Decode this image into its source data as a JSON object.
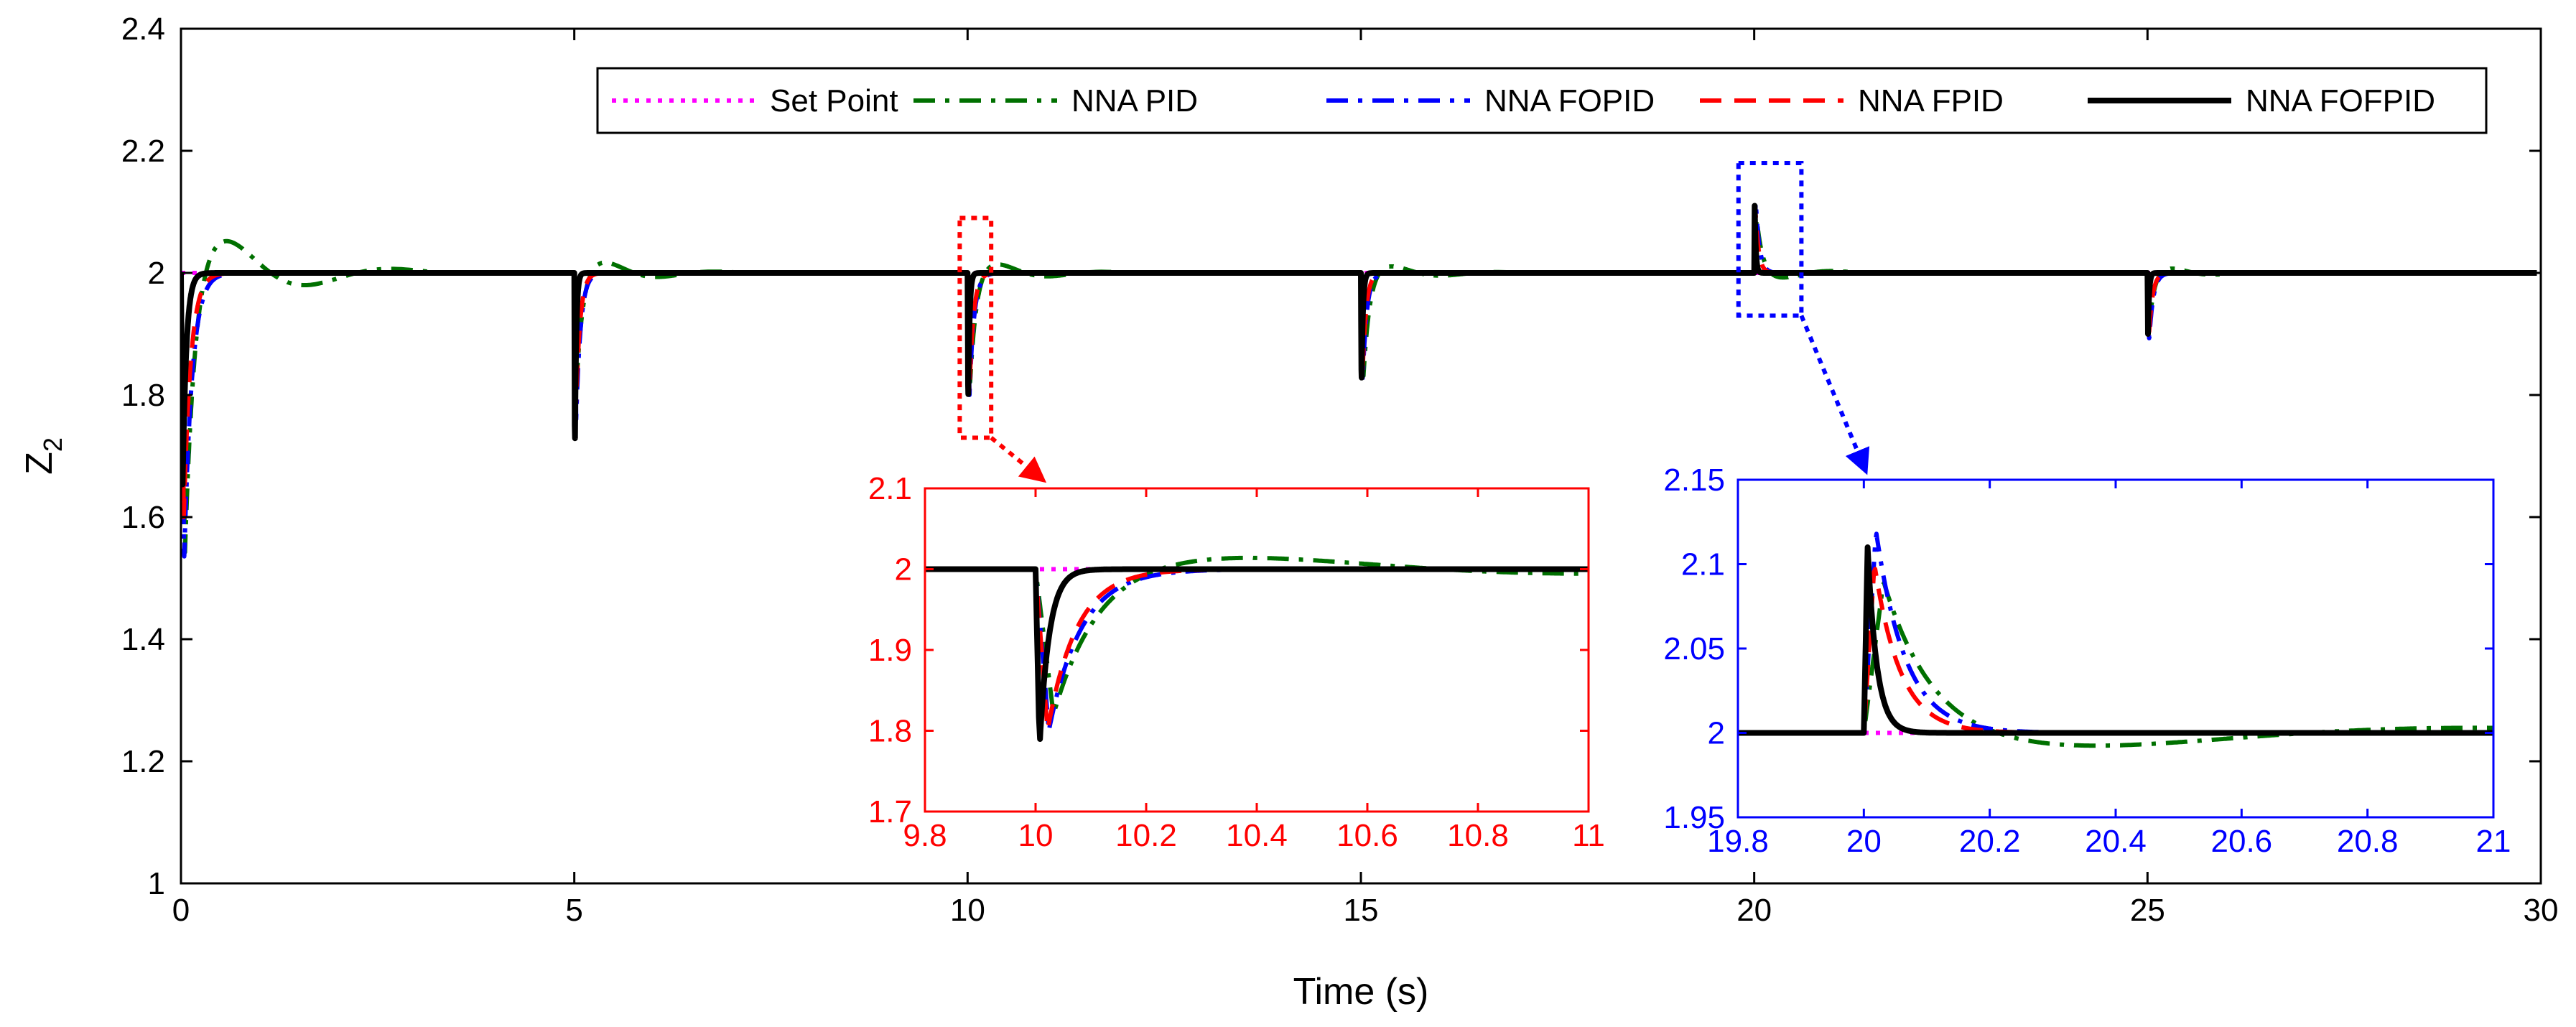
{
  "chart_data": {
    "type": "line",
    "xlabel": "Time (s)",
    "ylabel": "Z",
    "ylabel_sub": "2",
    "xlim": [
      0,
      30
    ],
    "ylim": [
      1,
      2.4
    ],
    "xticks": [
      0,
      5,
      10,
      15,
      20,
      25,
      30
    ],
    "yticks": [
      1,
      1.2,
      1.4,
      1.6,
      1.8,
      2,
      2.2,
      2.4
    ],
    "xtick_labels": [
      "0",
      "5",
      "10",
      "15",
      "20",
      "25",
      "30"
    ],
    "ytick_labels": [
      "1",
      "1.2",
      "1.4",
      "1.6",
      "1.8",
      "2",
      "2.2",
      "2.4"
    ],
    "legend": {
      "placement": "top-right",
      "entries": [
        "Set Point",
        "NNA PID",
        "NNA FOPID",
        "NNA FPID",
        "NNA FOFPID"
      ]
    },
    "disturbance_times": [
      0,
      5,
      10,
      15,
      20,
      25
    ],
    "series": [
      {
        "name": "Set Point",
        "color": "#ff00ff",
        "style": "dotted",
        "events": [
          {
            "t": 0,
            "peak": 2.0,
            "dur": 0
          },
          {
            "t": 5,
            "peak": 2.0,
            "dur": 0
          },
          {
            "t": 10,
            "peak": 2.0,
            "dur": 0
          },
          {
            "t": 15,
            "peak": 2.0,
            "dur": 0
          },
          {
            "t": 20,
            "peak": 2.0,
            "dur": 0
          },
          {
            "t": 25,
            "peak": 2.0,
            "dur": 0
          }
        ]
      },
      {
        "name": "NNA PID",
        "color": "#007000",
        "style": "dashdot",
        "events": [
          {
            "t": 0,
            "peak": 1.54,
            "dur": 0.42,
            "over": 0.1,
            "und": 0.025
          },
          {
            "t": 5,
            "peak": 1.83,
            "dur": 0.28,
            "over": 0.033,
            "und": 0.006
          },
          {
            "t": 10,
            "peak": 1.82,
            "dur": 0.27,
            "over": 0.028,
            "und": 0.006
          },
          {
            "t": 15,
            "peak": 1.83,
            "dur": 0.27,
            "over": 0.022,
            "und": 0.005
          },
          {
            "t": 20,
            "peak": 2.09,
            "dur": 0.26,
            "over": -0.015,
            "und": -0.004
          },
          {
            "t": 25,
            "peak": 1.92,
            "dur": 0.22,
            "over": 0.014,
            "und": 0.003
          }
        ]
      },
      {
        "name": "NNA FOPID",
        "color": "#0000ff",
        "style": "dashdot",
        "events": [
          {
            "t": 0,
            "peak": 1.53,
            "dur": 0.34,
            "over": 0.0,
            "und": 0
          },
          {
            "t": 5,
            "peak": 1.76,
            "dur": 0.2,
            "over": 0.0,
            "und": 0
          },
          {
            "t": 10,
            "peak": 1.8,
            "dur": 0.2,
            "over": 0.0,
            "und": 0
          },
          {
            "t": 15,
            "peak": 1.82,
            "dur": 0.18,
            "over": 0.0,
            "und": 0
          },
          {
            "t": 20,
            "peak": 2.12,
            "dur": 0.16,
            "over": 0.0,
            "und": 0
          },
          {
            "t": 25,
            "peak": 1.89,
            "dur": 0.18,
            "over": 0.0,
            "und": 0
          }
        ]
      },
      {
        "name": "NNA FPID",
        "color": "#ff0000",
        "style": "dashed",
        "events": [
          {
            "t": 0,
            "peak": 1.6,
            "dur": 0.3,
            "over": 0.0,
            "und": 0
          },
          {
            "t": 5,
            "peak": 1.78,
            "dur": 0.18,
            "over": 0.0,
            "und": 0
          },
          {
            "t": 10,
            "peak": 1.8,
            "dur": 0.18,
            "over": 0.0,
            "und": 0
          },
          {
            "t": 15,
            "peak": 1.83,
            "dur": 0.16,
            "over": 0.0,
            "und": 0
          },
          {
            "t": 20,
            "peak": 2.1,
            "dur": 0.14,
            "over": 0.0,
            "und": 0
          },
          {
            "t": 25,
            "peak": 1.9,
            "dur": 0.16,
            "over": 0.0,
            "und": 0
          }
        ]
      },
      {
        "name": "NNA FOFPID",
        "color": "#000000",
        "style": "solid",
        "events": [
          {
            "t": 0,
            "peak": 1.64,
            "dur": 0.16,
            "over": 0.0,
            "und": 0
          },
          {
            "t": 5,
            "peak": 1.7,
            "dur": 0.06,
            "over": 0.0,
            "und": 0
          },
          {
            "t": 10,
            "peak": 1.78,
            "dur": 0.06,
            "over": 0.0,
            "und": 0
          },
          {
            "t": 15,
            "peak": 1.81,
            "dur": 0.06,
            "over": 0.0,
            "und": 0
          },
          {
            "t": 20,
            "peak": 2.11,
            "dur": 0.05,
            "over": 0.0,
            "und": 0
          },
          {
            "t": 25,
            "peak": 1.9,
            "dur": 0.05,
            "over": 0.0,
            "und": 0
          }
        ]
      }
    ],
    "insets": [
      {
        "name": "inset-10s",
        "color": "#ff0000",
        "event_index": 2,
        "xlim": [
          9.8,
          11
        ],
        "ylim": [
          1.7,
          2.1
        ],
        "xticks": [
          9.8,
          10,
          10.2,
          10.4,
          10.6,
          10.8,
          11
        ],
        "yticks": [
          1.7,
          1.8,
          1.9,
          2,
          2.1
        ],
        "xtick_labels": [
          "9.8",
          "10",
          "10.2",
          "10.4",
          "10.6",
          "10.8",
          "11"
        ],
        "ytick_labels": [
          "1.7",
          "1.8",
          "1.9",
          "2",
          "2.1"
        ],
        "zoom_region": {
          "x": [
            9.9,
            10.3
          ],
          "y": [
            1.73,
            2.09
          ]
        }
      },
      {
        "name": "inset-20s",
        "color": "#0000ff",
        "event_index": 4,
        "xlim": [
          19.8,
          21
        ],
        "ylim": [
          1.95,
          2.15
        ],
        "xticks": [
          19.8,
          20,
          20.2,
          20.4,
          20.6,
          20.8,
          21
        ],
        "yticks": [
          1.95,
          2,
          2.05,
          2.1,
          2.15
        ],
        "xtick_labels": [
          "19.8",
          "20",
          "20.2",
          "20.4",
          "20.6",
          "20.8",
          "21"
        ],
        "ytick_labels": [
          "1.95",
          "2",
          "2.05",
          "2.1",
          "2.15"
        ],
        "zoom_region": {
          "x": [
            19.8,
            20.6
          ],
          "y": [
            1.93,
            2.18
          ]
        }
      }
    ]
  }
}
